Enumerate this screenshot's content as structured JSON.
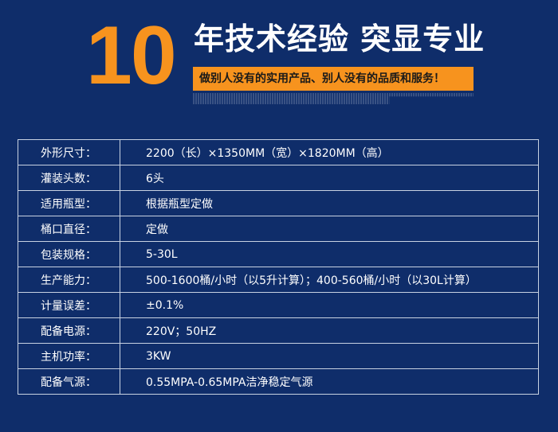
{
  "header": {
    "number": "10",
    "headline": "年技术经验 突显专业",
    "banner": "做别人没有的实用产品、别人没有的品质和服务！"
  },
  "colors": {
    "background": "#0f2d6a",
    "accent": "#f7931e"
  },
  "specs": [
    {
      "label": "外形尺寸：",
      "value": "2200（长）×1350MM（宽）×1820MM（高）"
    },
    {
      "label": "灌装头数：",
      "value": "6头"
    },
    {
      "label": "适用瓶型：",
      "value": "根据瓶型定做"
    },
    {
      "label": "桶口直径：",
      "value": "定做"
    },
    {
      "label": "包装规格：",
      "value": "5-30L"
    },
    {
      "label": "生产能力：",
      "value": "500-1600桶/小时（以5升计算）；400-560桶/小时（以30L计算）"
    },
    {
      "label": "计量误差：",
      "value": "±0.1%"
    },
    {
      "label": "配备电源：",
      "value": "220V；50HZ"
    },
    {
      "label": "主机功率：",
      "value": "3KW"
    },
    {
      "label": "配备气源：",
      "value": "0.55MPA-0.65MPA洁净稳定气源"
    }
  ]
}
